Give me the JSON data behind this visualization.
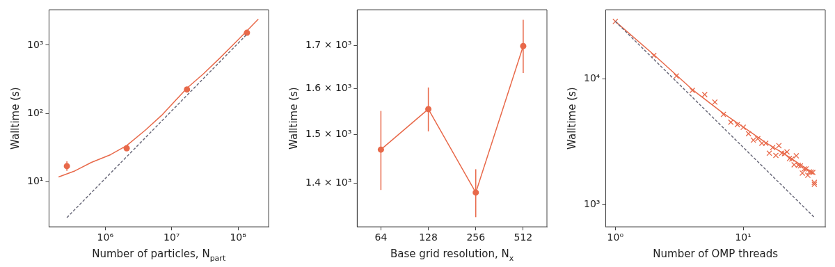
{
  "chart_data": [
    {
      "type": "scatter",
      "xlabel": "Number of particles, N$_{part}$",
      "ylabel": "Walltime (s)",
      "log": "xy",
      "marker": "circle",
      "grid": false,
      "legend": false,
      "xlim": [
        142000,
        288000000
      ],
      "ylim": [
        2.2,
        3300
      ],
      "xticks": [
        {
          "value": 1000000,
          "label": "10⁶"
        },
        {
          "value": 10000000,
          "label": "10⁷"
        },
        {
          "value": 100000000,
          "label": "10⁸"
        }
      ],
      "yticks": [
        {
          "value": 10,
          "label": "10¹"
        },
        {
          "value": 100,
          "label": "10²"
        },
        {
          "value": 1000,
          "label": "10³"
        }
      ],
      "series": [
        {
          "color": "#e8694a",
          "x": [
            264000,
            2100000,
            17000000,
            136000000
          ],
          "values": [
            17,
            31,
            225,
            1520
          ],
          "errors": [
            [
              14.5,
              20
            ],
            null,
            null,
            null
          ]
        },
        {
          "type": "line",
          "marker": "none",
          "color": "#e8694a",
          "x": [
            198000,
            350000,
            620000,
            1200000,
            2100000,
            4000000,
            7050000,
            17000000,
            30000000,
            53300000,
            100000000,
            202000000
          ],
          "values": [
            11.8,
            14.5,
            19.3,
            25,
            34,
            57,
            94,
            235,
            380,
            650,
            1200,
            2400
          ]
        },
        {
          "type": "line",
          "marker": "none",
          "line_style": "dashed",
          "color": "#6b6b7b",
          "x": [
            264000,
            133000000
          ],
          "values": [
            3,
            1415
          ]
        }
      ]
    },
    {
      "type": "line",
      "xlabel": "Base grid resolution, N$_{x}$",
      "ylabel": "Walltime (s)",
      "log": "y",
      "marker": "circle",
      "grid": false,
      "legend": false,
      "categories": [
        "64",
        "128",
        "256",
        "512"
      ],
      "ylim": [
        1317,
        1787
      ],
      "yticks": [
        {
          "value": 1400,
          "label": "1.4 × 10³"
        },
        {
          "value": 1500,
          "label": "1.5 × 10³"
        },
        {
          "value": 1600,
          "label": "1.6 × 10³"
        },
        {
          "value": 1700,
          "label": "1.7 × 10³"
        }
      ],
      "series": [
        {
          "color": "#e8694a",
          "values": [
            1468,
            1554,
            1382,
            1698
          ],
          "errors": [
            [
              1387,
              1550
            ],
            [
              1506,
              1602
            ],
            [
              1335,
              1428
            ],
            [
              1635,
              1762
            ]
          ]
        }
      ]
    },
    {
      "type": "scatter",
      "xlabel": "Number of OMP threads",
      "ylabel": "Walltime (s)",
      "log": "xy",
      "marker": "cross",
      "grid": false,
      "legend": false,
      "xlim": [
        0.84,
        43.8
      ],
      "ylim": [
        666,
        35300
      ],
      "xticks": [
        {
          "value": 1,
          "label": "10⁰"
        },
        {
          "value": 10,
          "label": "10¹"
        }
      ],
      "yticks": [
        {
          "value": 1000,
          "label": "10³"
        },
        {
          "value": 10000,
          "label": "10⁴"
        }
      ],
      "series": [
        {
          "color": "#e8694a",
          "x": [
            1,
            2,
            3,
            4,
            5,
            6,
            7,
            8,
            9,
            10,
            11,
            12,
            13,
            14,
            15,
            16,
            17,
            18,
            19,
            20,
            21,
            22,
            23,
            24,
            25,
            26,
            27,
            28,
            29,
            30,
            31,
            32,
            33,
            34,
            35,
            36,
            36
          ],
          "values": [
            28500,
            15300,
            10500,
            8070,
            7480,
            6520,
            5200,
            4510,
            4320,
            4110,
            3660,
            3250,
            3340,
            3070,
            3070,
            2560,
            2840,
            2460,
            2940,
            2560,
            2540,
            2620,
            2320,
            2300,
            2070,
            2440,
            2050,
            2030,
            1780,
            1920,
            1920,
            1710,
            1820,
            1810,
            1800,
            1500,
            1450
          ]
        },
        {
          "type": "line",
          "marker": "none",
          "color": "#e8694a",
          "x": [
            1,
            2,
            4,
            7,
            10,
            15,
            22,
            35.8
          ],
          "values": [
            28500,
            15500,
            8200,
            5300,
            4140,
            3110,
            2450,
            1760
          ]
        },
        {
          "type": "line",
          "marker": "none",
          "line_style": "dashed",
          "color": "#6b6b7b",
          "x": [
            1,
            35.8
          ],
          "values": [
            28500,
            796
          ]
        }
      ]
    }
  ]
}
